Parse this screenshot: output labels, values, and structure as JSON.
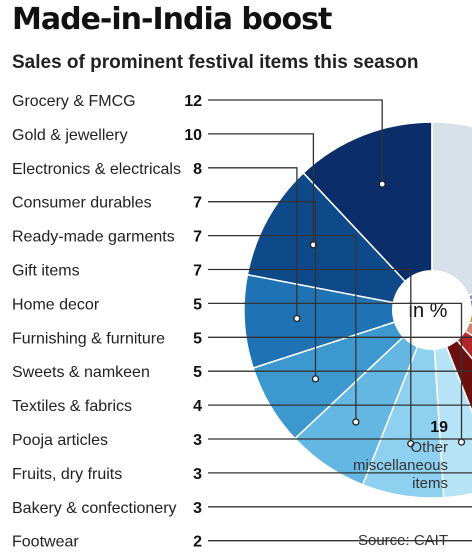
{
  "header": {
    "title": "Made-in-India boost",
    "subtitle": "Sales of prominent festival items this season"
  },
  "source": "Source: CAIT",
  "chart_data": {
    "type": "pie",
    "center_label": "in %",
    "unit": "%",
    "slices": [
      {
        "label": "Grocery & FMCG",
        "value": 12,
        "color": "#0b2e6b"
      },
      {
        "label": "Gold & jewellery",
        "value": 10,
        "color": "#0e4a8a"
      },
      {
        "label": "Electronics & electricals",
        "value": 8,
        "color": "#1f73b4"
      },
      {
        "label": "Consumer durables",
        "value": 7,
        "color": "#3d98d0"
      },
      {
        "label": "Ready-made garments",
        "value": 7,
        "color": "#64b7e2"
      },
      {
        "label": "Gift items",
        "value": 7,
        "color": "#8dd0f0"
      },
      {
        "label": "Home decor",
        "value": 5,
        "color": "#b6e3f6"
      },
      {
        "label": "Furnishing & furniture",
        "value": 5,
        "color": "#6e0f0f"
      },
      {
        "label": "Sweets & namkeen",
        "value": 5,
        "color": "#b5262a"
      },
      {
        "label": "Textiles & fabrics",
        "value": 4,
        "color": "#d9806d"
      },
      {
        "label": "Pooja articles",
        "value": 3,
        "color": "#de8a2a"
      },
      {
        "label": "Fruits, dry fruits",
        "value": 3,
        "color": "#f0bb4c"
      },
      {
        "label": "Bakery & confectionery",
        "value": 3,
        "color": "#4c5f8c"
      },
      {
        "label": "Footwear",
        "value": 2,
        "color": "#8596b4"
      }
    ],
    "other": {
      "value": 19,
      "label": "Other miscellaneous items",
      "lines": [
        "Other",
        "miscellaneous",
        "items"
      ],
      "color": "#d8e1ea"
    }
  }
}
